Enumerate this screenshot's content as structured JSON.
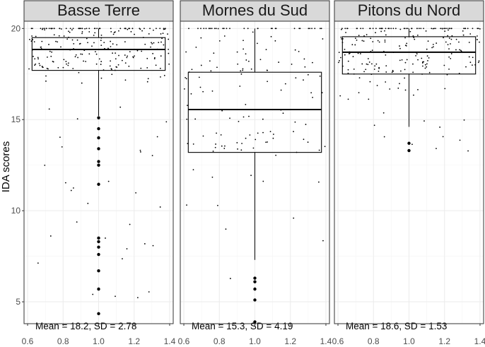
{
  "chart_data": {
    "type": "boxplot",
    "ylabel": "IDA scores",
    "xlim": [
      0.58,
      1.42
    ],
    "ylim": [
      3.8,
      20.4
    ],
    "x_ticks": [
      0.6,
      0.8,
      1.0,
      1.2,
      1.4
    ],
    "x_tick_labels": [
      "0.6",
      "0.8",
      "1.0",
      "1.2",
      "1.4"
    ],
    "y_ticks": [
      5,
      10,
      15,
      20
    ],
    "y_tick_labels": [
      "5",
      "10",
      "15",
      "20"
    ],
    "grid": true,
    "colors": {
      "strip_fill": "#d9d9d9",
      "panel_border": "#333333",
      "grid_major": "#ebebeb",
      "grid_minor": "#f5f5f5",
      "box": "#000000",
      "points": "#000000"
    },
    "panels": [
      {
        "title": "Basse Terre",
        "annotation": "Mean = 18.2, SD = 2.78",
        "box": {
          "q1": 17.7,
          "median": 18.85,
          "q3": 19.5,
          "whisker_low": 15.2,
          "whisker_high": 20.0
        },
        "outliers": [
          15.1,
          14.5,
          14.0,
          13.4,
          12.7,
          12.5,
          11.45,
          8.5,
          8.3,
          8.0,
          7.6,
          6.7,
          5.7,
          4.35
        ],
        "jitter": {
          "count": 260,
          "low": 4.5,
          "high": 20.0,
          "seed": 11
        }
      },
      {
        "title": "Mornes du Sud",
        "annotation": "Mean = 15.3, SD = 4.19",
        "box": {
          "q1": 13.2,
          "median": 15.55,
          "q3": 17.6,
          "whisker_low": 7.3,
          "whisker_high": 20.0
        },
        "outliers": [
          6.3,
          6.1,
          5.7,
          5.1,
          3.9
        ],
        "jitter": {
          "count": 150,
          "low": 5.0,
          "high": 20.0,
          "seed": 27
        }
      },
      {
        "title": "Pitons du Nord",
        "annotation": "Mean = 18.6, SD = 1.53",
        "box": {
          "q1": 17.5,
          "median": 18.7,
          "q3": 19.55,
          "whisker_low": 14.6,
          "whisker_high": 20.0
        },
        "outliers": [
          13.7,
          13.3
        ],
        "jitter": {
          "count": 240,
          "low": 13.2,
          "high": 20.0,
          "seed": 43
        }
      }
    ]
  }
}
